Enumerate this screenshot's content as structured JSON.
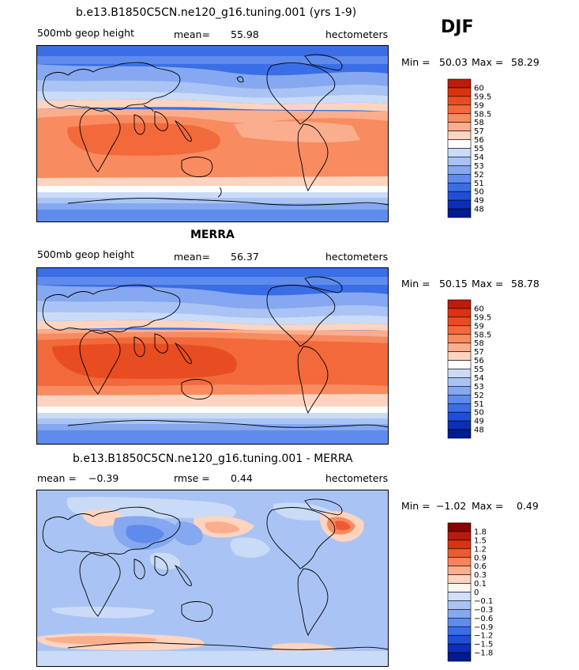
{
  "season": "DJF",
  "panels": [
    {
      "title": "b.e13.B1850C5CN.ne120_g16.tuning.001 (yrs 1-9)",
      "variable": "500mb geop height",
      "stat_label": "mean=",
      "stat_value": "55.98",
      "units": "hectometers",
      "min_label": "Min =",
      "min_value": "50.03",
      "max_label": "Max =",
      "max_value": "58.29",
      "levels": [
        "60",
        "59.5",
        "59",
        "58.5",
        "58",
        "57",
        "56",
        "55",
        "54",
        "53",
        "52",
        "51",
        "50",
        "49",
        "48"
      ],
      "colors": [
        "#c01a09",
        "#d9330f",
        "#e84d22",
        "#f26a3c",
        "#f88b60",
        "#fbae8d",
        "#fdd4bf",
        "#ffffff",
        "#cadbf7",
        "#a9c4f4",
        "#85a8f0",
        "#5f8bec",
        "#3a6ee6",
        "#1f4fd6",
        "#0b2fb6",
        "#001a90"
      ]
    },
    {
      "title": "MERRA",
      "variable": "500mb geop height",
      "stat_label": "mean=",
      "stat_value": "56.37",
      "units": "hectometers",
      "min_label": "Min =",
      "min_value": "50.15",
      "max_label": "Max =",
      "max_value": "58.78",
      "levels": [
        "60",
        "59.5",
        "59",
        "58.5",
        "58",
        "57",
        "56",
        "55",
        "54",
        "53",
        "52",
        "51",
        "50",
        "49",
        "48"
      ],
      "colors": [
        "#c01a09",
        "#d9330f",
        "#e84d22",
        "#f26a3c",
        "#f88b60",
        "#fbae8d",
        "#fdd4bf",
        "#ffffff",
        "#cadbf7",
        "#a9c4f4",
        "#85a8f0",
        "#5f8bec",
        "#3a6ee6",
        "#1f4fd6",
        "#0b2fb6",
        "#001a90"
      ]
    },
    {
      "title": "b.e13.B1850C5CN.ne120_g16.tuning.001 - MERRA",
      "stat1_label": "mean =",
      "stat1_value": "−0.39",
      "stat2_label": "rmse =",
      "stat2_value": "0.44",
      "units": "hectometers",
      "min_label": "Min =",
      "min_value": "−1.02",
      "max_label": "Max =",
      "max_value": "0.49",
      "levels": [
        "1.8",
        "1.5",
        "1.2",
        "0.9",
        "0.6",
        "0.3",
        "0.1",
        "0",
        "−0.1",
        "−0.3",
        "−0.6",
        "−0.9",
        "−1.2",
        "−1.5",
        "−1.8"
      ],
      "colors": [
        "#8b0000",
        "#b81a0f",
        "#d9330f",
        "#ef5a32",
        "#f8845c",
        "#fbae8d",
        "#fdd4bf",
        "#fff5ec",
        "#cfe0fa",
        "#a9c4f4",
        "#85a8f0",
        "#5f8bec",
        "#3a6ee6",
        "#1f4fd6",
        "#0b2fb6",
        "#001a90"
      ]
    }
  ]
}
